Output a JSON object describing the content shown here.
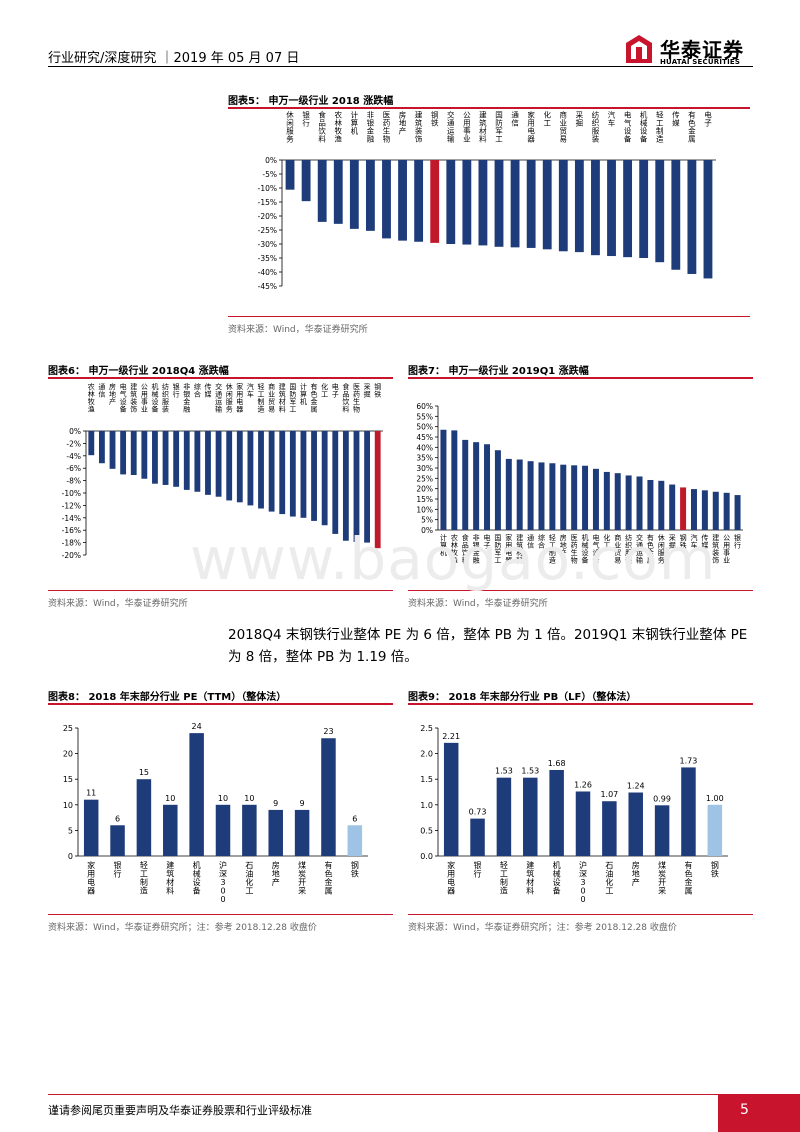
{
  "header": {
    "text": "行业研究/深度研究 ｜2019 年 05 月 07 日",
    "logo_cn": "华泰证券",
    "logo_en": "HUATAI SECURITIES"
  },
  "watermark": "www.baogao.com",
  "colors": {
    "bar": "#1f3c7a",
    "highlight": "#c0192c",
    "light": "#9ec3e4",
    "accent": "#c8152d"
  },
  "figures": {
    "fig5": {
      "title": "图表5：  申万一级行业 2018 涨跌幅",
      "source": "资料来源：Wind，华泰证券研究所"
    },
    "fig6": {
      "title": "图表6：  申万一级行业 2018Q4 涨跌幅",
      "source": "资料来源：Wind，华泰证券研究所"
    },
    "fig7": {
      "title": "图表7：  申万一级行业 2019Q1 涨跌幅",
      "source": "资料来源：Wind，华泰证券研究所"
    },
    "fig8": {
      "title": "图表8：  2018 年末部分行业 PE（TTM）（整体法）",
      "source": "资料来源：Wind，华泰证券研究所；注：参考 2018.12.28 收盘价"
    },
    "fig9": {
      "title": "图表9：  2018 年末部分行业 PB（LF）（整体法）",
      "source": "资料来源：Wind，华泰证券研究所；注：参考 2018.12.28 收盘价"
    }
  },
  "paragraph": "2018Q4 末钢铁行业整体 PE 为 6 倍，整体 PB 为 1 倍。2019Q1 末钢铁行业整体 PE 为 8 倍，整体 PB 为 1.19 倍。",
  "footer": {
    "text": "谨请参阅尾页重要声明及华泰证券股票和行业评级标准",
    "page": "5"
  },
  "chart_data": [
    {
      "id": "fig5",
      "type": "bar",
      "categories": [
        "休闲服务",
        "银行",
        "食品饮料",
        "农林牧渔",
        "计算机",
        "非银金融",
        "医药生物",
        "房地产",
        "建筑装饰",
        "钢铁",
        "交通运输",
        "公用事业",
        "建筑材料",
        "国防军工",
        "通信",
        "家用电器",
        "化工",
        "商业贸易",
        "采掘",
        "纺织服装",
        "汽车",
        "电气设备",
        "机械设备",
        "轻工制造",
        "传媒",
        "有色金属",
        "电子"
      ],
      "values": [
        -10.6,
        -14.7,
        -22.1,
        -22.8,
        -24.6,
        -25.3,
        -28.0,
        -28.8,
        -29.2,
        -29.6,
        -30.0,
        -30.2,
        -30.5,
        -31.0,
        -31.2,
        -31.4,
        -31.9,
        -32.6,
        -32.9,
        -34.0,
        -34.3,
        -34.7,
        -35.0,
        -36.5,
        -39.2,
        -40.7,
        -42.3
      ],
      "highlight": "钢铁",
      "ylim": [
        -45,
        0
      ],
      "yticks": [
        "0%",
        "-5%",
        "-10%",
        "-15%",
        "-20%",
        "-25%",
        "-30%",
        "-35%",
        "-40%",
        "-45%"
      ]
    },
    {
      "id": "fig6",
      "type": "bar",
      "categories": [
        "农林牧渔",
        "通信",
        "房地产",
        "电气设备",
        "建筑装饰",
        "公用事业",
        "机械设备",
        "纺织服装",
        "银行",
        "非银金融",
        "综合",
        "传媒",
        "交通运输",
        "休闲服务",
        "家用电器",
        "汽车",
        "轻工制造",
        "商业贸易",
        "建筑材料",
        "国防军工",
        "计算机",
        "有色金属",
        "化工",
        "电子",
        "食品饮料",
        "医药生物",
        "采掘",
        "钢铁"
      ],
      "values": [
        -3.9,
        -5.2,
        -6.1,
        -7.0,
        -7.1,
        -7.7,
        -8.5,
        -8.7,
        -9.0,
        -9.5,
        -9.8,
        -10.3,
        -10.6,
        -11.2,
        -11.5,
        -12.0,
        -12.5,
        -13.0,
        -13.4,
        -13.8,
        -14.0,
        -14.5,
        -15.2,
        -16.6,
        -17.7,
        -17.9,
        -18.0,
        -18.9
      ],
      "highlight": "钢铁",
      "ylim": [
        -20,
        0
      ],
      "yticks": [
        "0%",
        "-2%",
        "-4%",
        "-6%",
        "-8%",
        "-10%",
        "-12%",
        "-14%",
        "-16%",
        "-18%",
        "-20%"
      ]
    },
    {
      "id": "fig7",
      "type": "bar",
      "categories": [
        "计算机",
        "农林牧渔",
        "食品饮料",
        "非银金融",
        "电子",
        "国防军工",
        "家用电器",
        "建筑材料",
        "通信",
        "综合",
        "轻工制造",
        "房地产",
        "医药生物",
        "机械设备",
        "电气设备",
        "化工",
        "商业贸易",
        "纺织服装",
        "交通运输",
        "有色金属",
        "休闲服务",
        "采掘",
        "钢铁",
        "汽车",
        "传媒",
        "建筑装饰",
        "公用事业",
        "银行"
      ],
      "values": [
        48.5,
        48.2,
        43.6,
        42.5,
        41.5,
        38.6,
        34.4,
        34.1,
        33.3,
        32.7,
        32.3,
        31.6,
        31.3,
        31.1,
        29.6,
        28.1,
        27.5,
        26.4,
        25.9,
        24.2,
        23.8,
        22.0,
        20.6,
        19.8,
        19.2,
        18.5,
        18.0,
        16.9
      ],
      "highlight": "钢铁",
      "ylim": [
        0,
        60
      ],
      "yticks": [
        "0%",
        "5%",
        "10%",
        "15%",
        "20%",
        "25%",
        "30%",
        "35%",
        "40%",
        "45%",
        "50%",
        "55%",
        "60%"
      ]
    },
    {
      "id": "fig8",
      "type": "bar",
      "categories": [
        "家用电器",
        "银行",
        "轻工制造",
        "建筑材料",
        "机械设备",
        "沪深300",
        "石油化工",
        "房地产",
        "煤炭开采",
        "有色金属",
        "钢铁"
      ],
      "values": [
        11,
        6,
        15,
        10,
        24,
        10,
        10,
        9,
        9,
        23,
        6
      ],
      "labels": [
        "11",
        "6",
        "15",
        "10",
        "24",
        "10",
        "10",
        "9",
        "9",
        "23",
        "6"
      ],
      "highlight": "钢铁",
      "ylim": [
        0,
        25
      ],
      "yticks": [
        "0",
        "5",
        "10",
        "15",
        "20",
        "25"
      ]
    },
    {
      "id": "fig9",
      "type": "bar",
      "categories": [
        "家用电器",
        "银行",
        "轻工制造",
        "建筑材料",
        "机械设备",
        "沪深300",
        "石油化工",
        "房地产",
        "煤炭开采",
        "有色金属",
        "钢铁"
      ],
      "values": [
        2.21,
        0.73,
        1.53,
        1.53,
        1.68,
        1.26,
        1.07,
        1.24,
        0.99,
        1.73,
        1.0
      ],
      "labels": [
        "2.21",
        "0.73",
        "1.53",
        "1.53",
        "1.68",
        "1.26",
        "1.07",
        "1.24",
        "0.99",
        "1.73",
        "1.00"
      ],
      "highlight": "钢铁",
      "ylim": [
        0,
        2.5
      ],
      "yticks": [
        "0.0",
        "0.5",
        "1.0",
        "1.5",
        "2.0",
        "2.5"
      ]
    }
  ]
}
